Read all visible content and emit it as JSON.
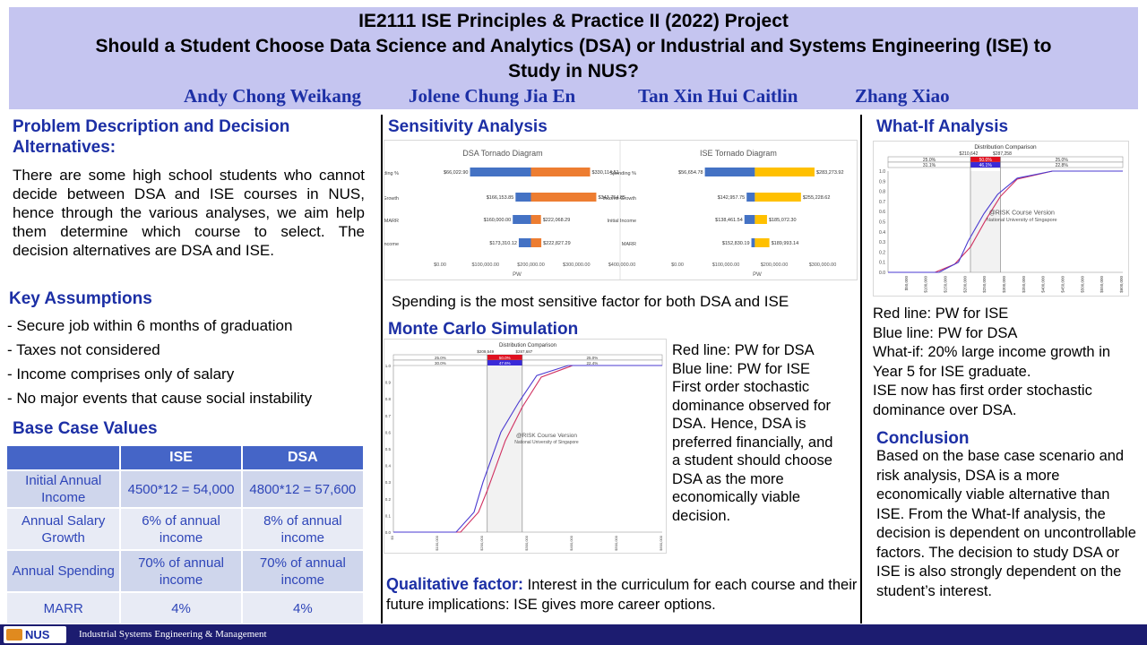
{
  "header": {
    "title_line1": "IE2111 ISE Principles & Practice II (2022) Project",
    "title_line2": "Should a Student Choose Data Science and Analytics (DSA) or Industrial and Systems Engineering (ISE) to",
    "title_line3": "Study in NUS?",
    "authors": [
      "Andy Chong Weikang",
      "Jolene Chung Jia En",
      "Tan Xin Hui Caitlin",
      "Zhang Xiao"
    ]
  },
  "problem": {
    "heading_line1": "Problem Description and Decision",
    "heading_line2": "Alternatives:",
    "body": "There are some high school students who cannot decide between DSA and ISE courses in NUS, hence through the various analyses, we aim help them determine which course to select. The decision alternatives are DSA and ISE."
  },
  "assumptions": {
    "heading": "Key Assumptions",
    "items": [
      "- Secure job within 6 months of graduation",
      "- Taxes not considered",
      "- Income comprises only of salary",
      "- No major events that cause social instability"
    ]
  },
  "base_case": {
    "heading": "Base Case Values",
    "columns": [
      "",
      "ISE",
      "DSA"
    ],
    "rows": [
      [
        "Initial Annual Income",
        "4500*12 = 54,000",
        "4800*12 = 57,600"
      ],
      [
        "Annual Salary Growth",
        "6% of annual income",
        "8% of annual income"
      ],
      [
        "Annual Spending",
        "70% of annual income",
        "70% of annual income"
      ],
      [
        "MARR",
        "4%",
        "4%"
      ]
    ]
  },
  "sensitivity": {
    "heading": "Sensitivity Analysis",
    "caption": "Spending is the most sensitive factor for both DSA and ISE",
    "axis_label": "PW",
    "dsa": {
      "title": "DSA Tornado Diagram",
      "ticks": [
        "$0.00",
        "$100,000.00",
        "$200,000.00",
        "$300,000.00",
        "$400,000.00"
      ],
      "bars": [
        {
          "label": "Spending %",
          "low": "$66,022.90",
          "high": "$330,114.51"
        },
        {
          "label": "Income Growth",
          "low": "$166,153.85",
          "high": "$343,754.85"
        },
        {
          "label": "MARR",
          "low": "$160,000.00",
          "high": "$222,068.29"
        },
        {
          "label": "Initial Income",
          "low": "$173,310.12",
          "high": "$222,827.29"
        }
      ]
    },
    "ise": {
      "title": "ISE Tornado Diagram",
      "ticks": [
        "$0.00",
        "$100,000.00",
        "$200,000.00",
        "$300,000.00"
      ],
      "bars": [
        {
          "label": "Spending %",
          "low": "$56,654.78",
          "high": "$283,273.92"
        },
        {
          "label": "Income Growth",
          "low": "$142,957.75",
          "high": "$255,228.62"
        },
        {
          "label": "Initial Income",
          "low": "$138,461.54",
          "high": "$185,072.30"
        },
        {
          "label": "MARR",
          "low": "$152,830.19",
          "high": "$189,993.14"
        }
      ]
    }
  },
  "monte_carlo": {
    "heading": "Monte Carlo Simulation",
    "chart_title": "Distribution Comparison",
    "markers": [
      "$209,549",
      "$287,687"
    ],
    "pct_row1": [
      "25.0%",
      "50.0%",
      "25.0%"
    ],
    "pct_row2": [
      "30.0%",
      "47.6%",
      "22.4%"
    ],
    "watermark1": "@RISK Course Version",
    "watermark2": "National University of Singapore",
    "y_ticks": [
      "0.0",
      "0.1",
      "0.2",
      "0.3",
      "0.4",
      "0.5",
      "0.6",
      "0.7",
      "0.8",
      "0.9",
      "1.0"
    ],
    "x_ticks": [
      "$0",
      "$100,000",
      "$200,000",
      "$300,000",
      "$400,000",
      "$500,000",
      "$600,000"
    ],
    "notes": [
      "Red line: PW for DSA",
      "Blue line: PW for ISE",
      "First order stochastic dominance observed for DSA. Hence, DSA is preferred financially, and a student should choose DSA as the more economically viable decision."
    ]
  },
  "qualitative": {
    "label": "Qualitative factor:",
    "text": " Interest in the curriculum for each course and their future implications: ISE gives more career options."
  },
  "what_if": {
    "heading": "What-If Analysis",
    "chart_title": "Distribution Comparison",
    "markers": [
      "$210,642",
      "$287,258"
    ],
    "pct_row1": [
      "25.0%",
      "50.0%",
      "25.0%"
    ],
    "pct_row2": [
      "31.1%",
      "46.1%",
      "22.8%"
    ],
    "watermark1": "@RISK Course Version",
    "watermark2": "National University of Singapore",
    "y_ticks": [
      "0.0",
      "0.1",
      "0.2",
      "0.3",
      "0.4",
      "0.5",
      "0.6",
      "0.7",
      "0.8",
      "0.9",
      "1.0"
    ],
    "x_ticks": [
      "$50,000",
      "$100,000",
      "$150,000",
      "$200,000",
      "$250,000",
      "$300,000",
      "$350,000",
      "$400,000",
      "$450,000",
      "$500,000",
      "$550,000",
      "$600,000"
    ],
    "notes": [
      "Red line: PW for ISE",
      "Blue line: PW for DSA",
      "What-if: 20% large income growth in Year 5 for ISE graduate.",
      "ISE now has first order stochastic dominance over DSA."
    ]
  },
  "conclusion": {
    "heading": "Conclusion",
    "body": "Based on the base case scenario and risk analysis, DSA is a more economically viable alternative than ISE. From the What-If analysis, the decision is dependent on uncontrollable factors. The decision to study DSA or ISE is also strongly dependent on the student’s interest."
  },
  "footer": {
    "logo": "NUS",
    "text": "Industrial Systems Engineering & Management"
  },
  "chart_data": [
    {
      "type": "bar",
      "title": "DSA Tornado Diagram",
      "xlabel": "PW",
      "categories": [
        "Spending %",
        "Income Growth",
        "MARR",
        "Initial Income"
      ],
      "series": [
        {
          "values": [
            66022.9,
            166153.85,
            160000.0,
            173310.12
          ]
        },
        {
          "values": [
            330114.51,
            343754.85,
            222068.29,
            222827.29
          ]
        }
      ],
      "base": 200000,
      "xlim": [
        0,
        400000
      ],
      "colors": [
        "#4472c4",
        "#ed7d31"
      ]
    },
    {
      "type": "bar",
      "title": "ISE Tornado Diagram",
      "xlabel": "PW",
      "categories": [
        "Spending %",
        "Income Growth",
        "Initial Income",
        "MARR"
      ],
      "series": [
        {
          "values": [
            56654.78,
            142957.75,
            138461.54,
            152830.19
          ]
        },
        {
          "values": [
            283273.92,
            255228.62,
            185072.3,
            189993.14
          ]
        }
      ],
      "base": 160000,
      "xlim": [
        0,
        300000
      ],
      "colors": [
        "#4472c4",
        "#ffc000"
      ]
    },
    {
      "type": "line",
      "title": "Distribution Comparison",
      "xlim": [
        0,
        600000
      ],
      "ylim": [
        0,
        1
      ],
      "series": [
        {
          "x": [
            150000,
            190000,
            209549,
            250000,
            287687,
            330000,
            400000
          ],
          "y": [
            0.0,
            0.12,
            0.25,
            0.55,
            0.75,
            0.93,
            1.0
          ],
          "color": "#d03060"
        },
        {
          "x": [
            140000,
            180000,
            200000,
            240000,
            280000,
            320000,
            390000
          ],
          "y": [
            0.0,
            0.12,
            0.3,
            0.6,
            0.78,
            0.94,
            1.0
          ],
          "color": "#4a3ad0"
        }
      ]
    },
    {
      "type": "line",
      "title": "Distribution Comparison",
      "xlim": [
        0,
        600000
      ],
      "ylim": [
        0,
        1
      ],
      "series": [
        {
          "x": [
            120000,
            170000,
            210642,
            250000,
            287258,
            330000,
            420000
          ],
          "y": [
            0.0,
            0.08,
            0.25,
            0.52,
            0.75,
            0.92,
            1.0
          ],
          "color": "#d03060"
        },
        {
          "x": [
            130000,
            180000,
            205000,
            245000,
            280000,
            330000,
            420000
          ],
          "y": [
            0.0,
            0.1,
            0.31,
            0.58,
            0.77,
            0.93,
            1.0
          ],
          "color": "#4a3ad0"
        }
      ]
    }
  ]
}
